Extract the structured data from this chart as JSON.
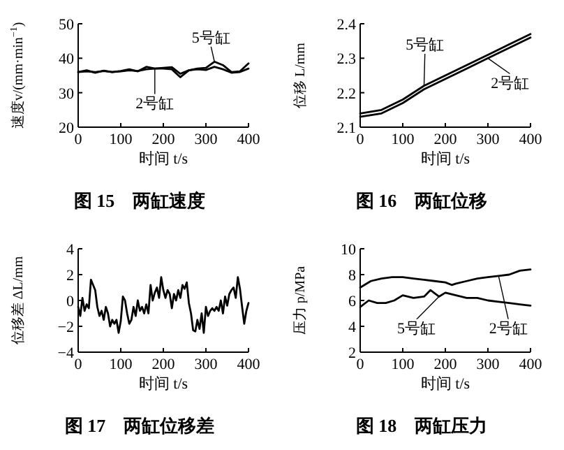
{
  "chart_data": [
    {
      "type": "line",
      "title": "图 15　两缸速度",
      "xlabel": "时间 t/s",
      "ylabel": "速度v/(mm·min$^{−1}$)",
      "xlim": [
        0,
        400
      ],
      "ylim": [
        20,
        50
      ],
      "xticks": [
        0,
        100,
        200,
        300,
        400
      ],
      "yticks": [
        20,
        30,
        40,
        50
      ],
      "x": [
        0,
        20,
        40,
        60,
        80,
        100,
        120,
        140,
        160,
        180,
        200,
        220,
        240,
        260,
        280,
        300,
        320,
        340,
        360,
        380,
        400
      ],
      "series": [
        {
          "name": "5号缸",
          "color": "#000000",
          "values": [
            36,
            36.5,
            35.8,
            36.4,
            36,
            36.3,
            36.8,
            36.2,
            37.5,
            37,
            37.2,
            37.4,
            35.5,
            36.5,
            37,
            37.2,
            39,
            38,
            36,
            36.2,
            38.5
          ]
        },
        {
          "name": "2号缸",
          "color": "#000000",
          "values": [
            36,
            36.2,
            36,
            36.3,
            36,
            36.2,
            36.5,
            36.3,
            36.8,
            37,
            37,
            36.8,
            34.5,
            36.5,
            36.8,
            36.6,
            37.5,
            36.8,
            35.8,
            36,
            37
          ]
        }
      ]
    },
    {
      "type": "line",
      "title": "图 16　两缸位移",
      "xlabel": "时间 t/s",
      "ylabel": "位移 L/mm",
      "xlim": [
        0,
        400
      ],
      "ylim": [
        2.1,
        2.4
      ],
      "xticks": [
        0,
        100,
        200,
        300,
        400
      ],
      "yticks": [
        2.1,
        2.2,
        2.3,
        2.4
      ],
      "x": [
        0,
        50,
        100,
        150,
        200,
        250,
        300,
        350,
        400
      ],
      "series": [
        {
          "name": "5号缸",
          "color": "#000000",
          "values": [
            2.14,
            2.15,
            2.18,
            2.22,
            2.25,
            2.28,
            2.31,
            2.34,
            2.37
          ]
        },
        {
          "name": "2号缸",
          "color": "#000000",
          "values": [
            2.13,
            2.14,
            2.17,
            2.21,
            2.24,
            2.27,
            2.3,
            2.33,
            2.36
          ]
        }
      ]
    },
    {
      "type": "line",
      "title": "图 17　两缸位移差",
      "xlabel": "时间 t/s",
      "ylabel": "位移差 ΔL/mm",
      "xlim": [
        0,
        400
      ],
      "ylim": [
        -4,
        4
      ],
      "xticks": [
        0,
        100,
        200,
        300,
        400
      ],
      "yticks": [
        {
          "value": -4,
          "label": "−4"
        },
        {
          "value": -2,
          "label": "−2"
        },
        0,
        2,
        4
      ],
      "x": [
        0,
        5,
        10,
        15,
        20,
        25,
        30,
        35,
        40,
        45,
        50,
        55,
        60,
        65,
        70,
        75,
        80,
        85,
        90,
        95,
        100,
        105,
        110,
        115,
        120,
        125,
        130,
        135,
        140,
        145,
        150,
        155,
        160,
        165,
        170,
        175,
        180,
        185,
        190,
        195,
        200,
        205,
        210,
        215,
        220,
        225,
        230,
        235,
        240,
        245,
        250,
        255,
        260,
        265,
        270,
        275,
        280,
        285,
        290,
        295,
        300,
        305,
        310,
        315,
        320,
        325,
        330,
        335,
        340,
        345,
        350,
        355,
        360,
        365,
        370,
        375,
        380,
        385,
        390,
        395,
        400
      ],
      "series": [
        {
          "color": "#000000",
          "values": [
            -0.5,
            -1.2,
            0.2,
            -0.8,
            -0.3,
            -0.6,
            1.6,
            1.2,
            0.8,
            -0.5,
            -1.2,
            -0.8,
            -1.5,
            -0.5,
            -1.0,
            -2,
            -1.5,
            -1.8,
            -1.5,
            -2.5,
            -1.6,
            0.3,
            0,
            -1,
            -1.8,
            -1.5,
            -0.5,
            -1.2,
            0,
            -0.8,
            -0.5,
            -1,
            -0.3,
            -1,
            1.2,
            0,
            0.6,
            1,
            0.2,
            1.8,
            0.8,
            0.2,
            0.8,
            0.5,
            -0.6,
            0.5,
            0,
            0.8,
            0.2,
            1.2,
            0.9,
            1.4,
            -0.2,
            -1,
            -2.3,
            -2.4,
            -1.5,
            -2.2,
            -1.0,
            -2.5,
            -0.5,
            -1.2,
            -0.8,
            -0.6,
            -0.8,
            -0.5,
            -0.8,
            0,
            -1,
            0.3,
            -0.4,
            0.5,
            0.8,
            1,
            0.2,
            1.8,
            0.9,
            -0.5,
            -1.8,
            -0.8,
            -0.2
          ]
        }
      ]
    },
    {
      "type": "line",
      "title": "图 18　两缸压力",
      "xlabel": "时间 t/s",
      "ylabel": "压力 p/MPa",
      "xlim": [
        0,
        400
      ],
      "ylim": [
        2,
        10
      ],
      "xticks": [
        0,
        100,
        200,
        300,
        400
      ],
      "yticks": [
        2,
        4,
        6,
        8,
        10
      ],
      "series": [
        {
          "name": "5号缸",
          "color": "#000000",
          "x": [
            0,
            20,
            40,
            60,
            80,
            100,
            125,
            150,
            165,
            185,
            200,
            225,
            250,
            275,
            300,
            325,
            350,
            375,
            400
          ],
          "values": [
            5.5,
            6,
            5.8,
            5.8,
            6,
            6.4,
            6.2,
            6.3,
            6.8,
            6.3,
            6.6,
            6.4,
            6.2,
            6.2,
            6.0,
            5.9,
            5.8,
            5.7,
            5.6
          ]
        },
        {
          "name": "2号缸",
          "color": "#000000",
          "x": [
            0,
            25,
            50,
            75,
            100,
            125,
            150,
            175,
            200,
            215,
            225,
            250,
            275,
            300,
            325,
            350,
            375,
            400
          ],
          "values": [
            7,
            7.5,
            7.7,
            7.8,
            7.8,
            7.7,
            7.6,
            7.5,
            7.4,
            7.2,
            7.3,
            7.5,
            7.7,
            7.8,
            7.9,
            8,
            8.3,
            8.4
          ]
        }
      ]
    }
  ]
}
